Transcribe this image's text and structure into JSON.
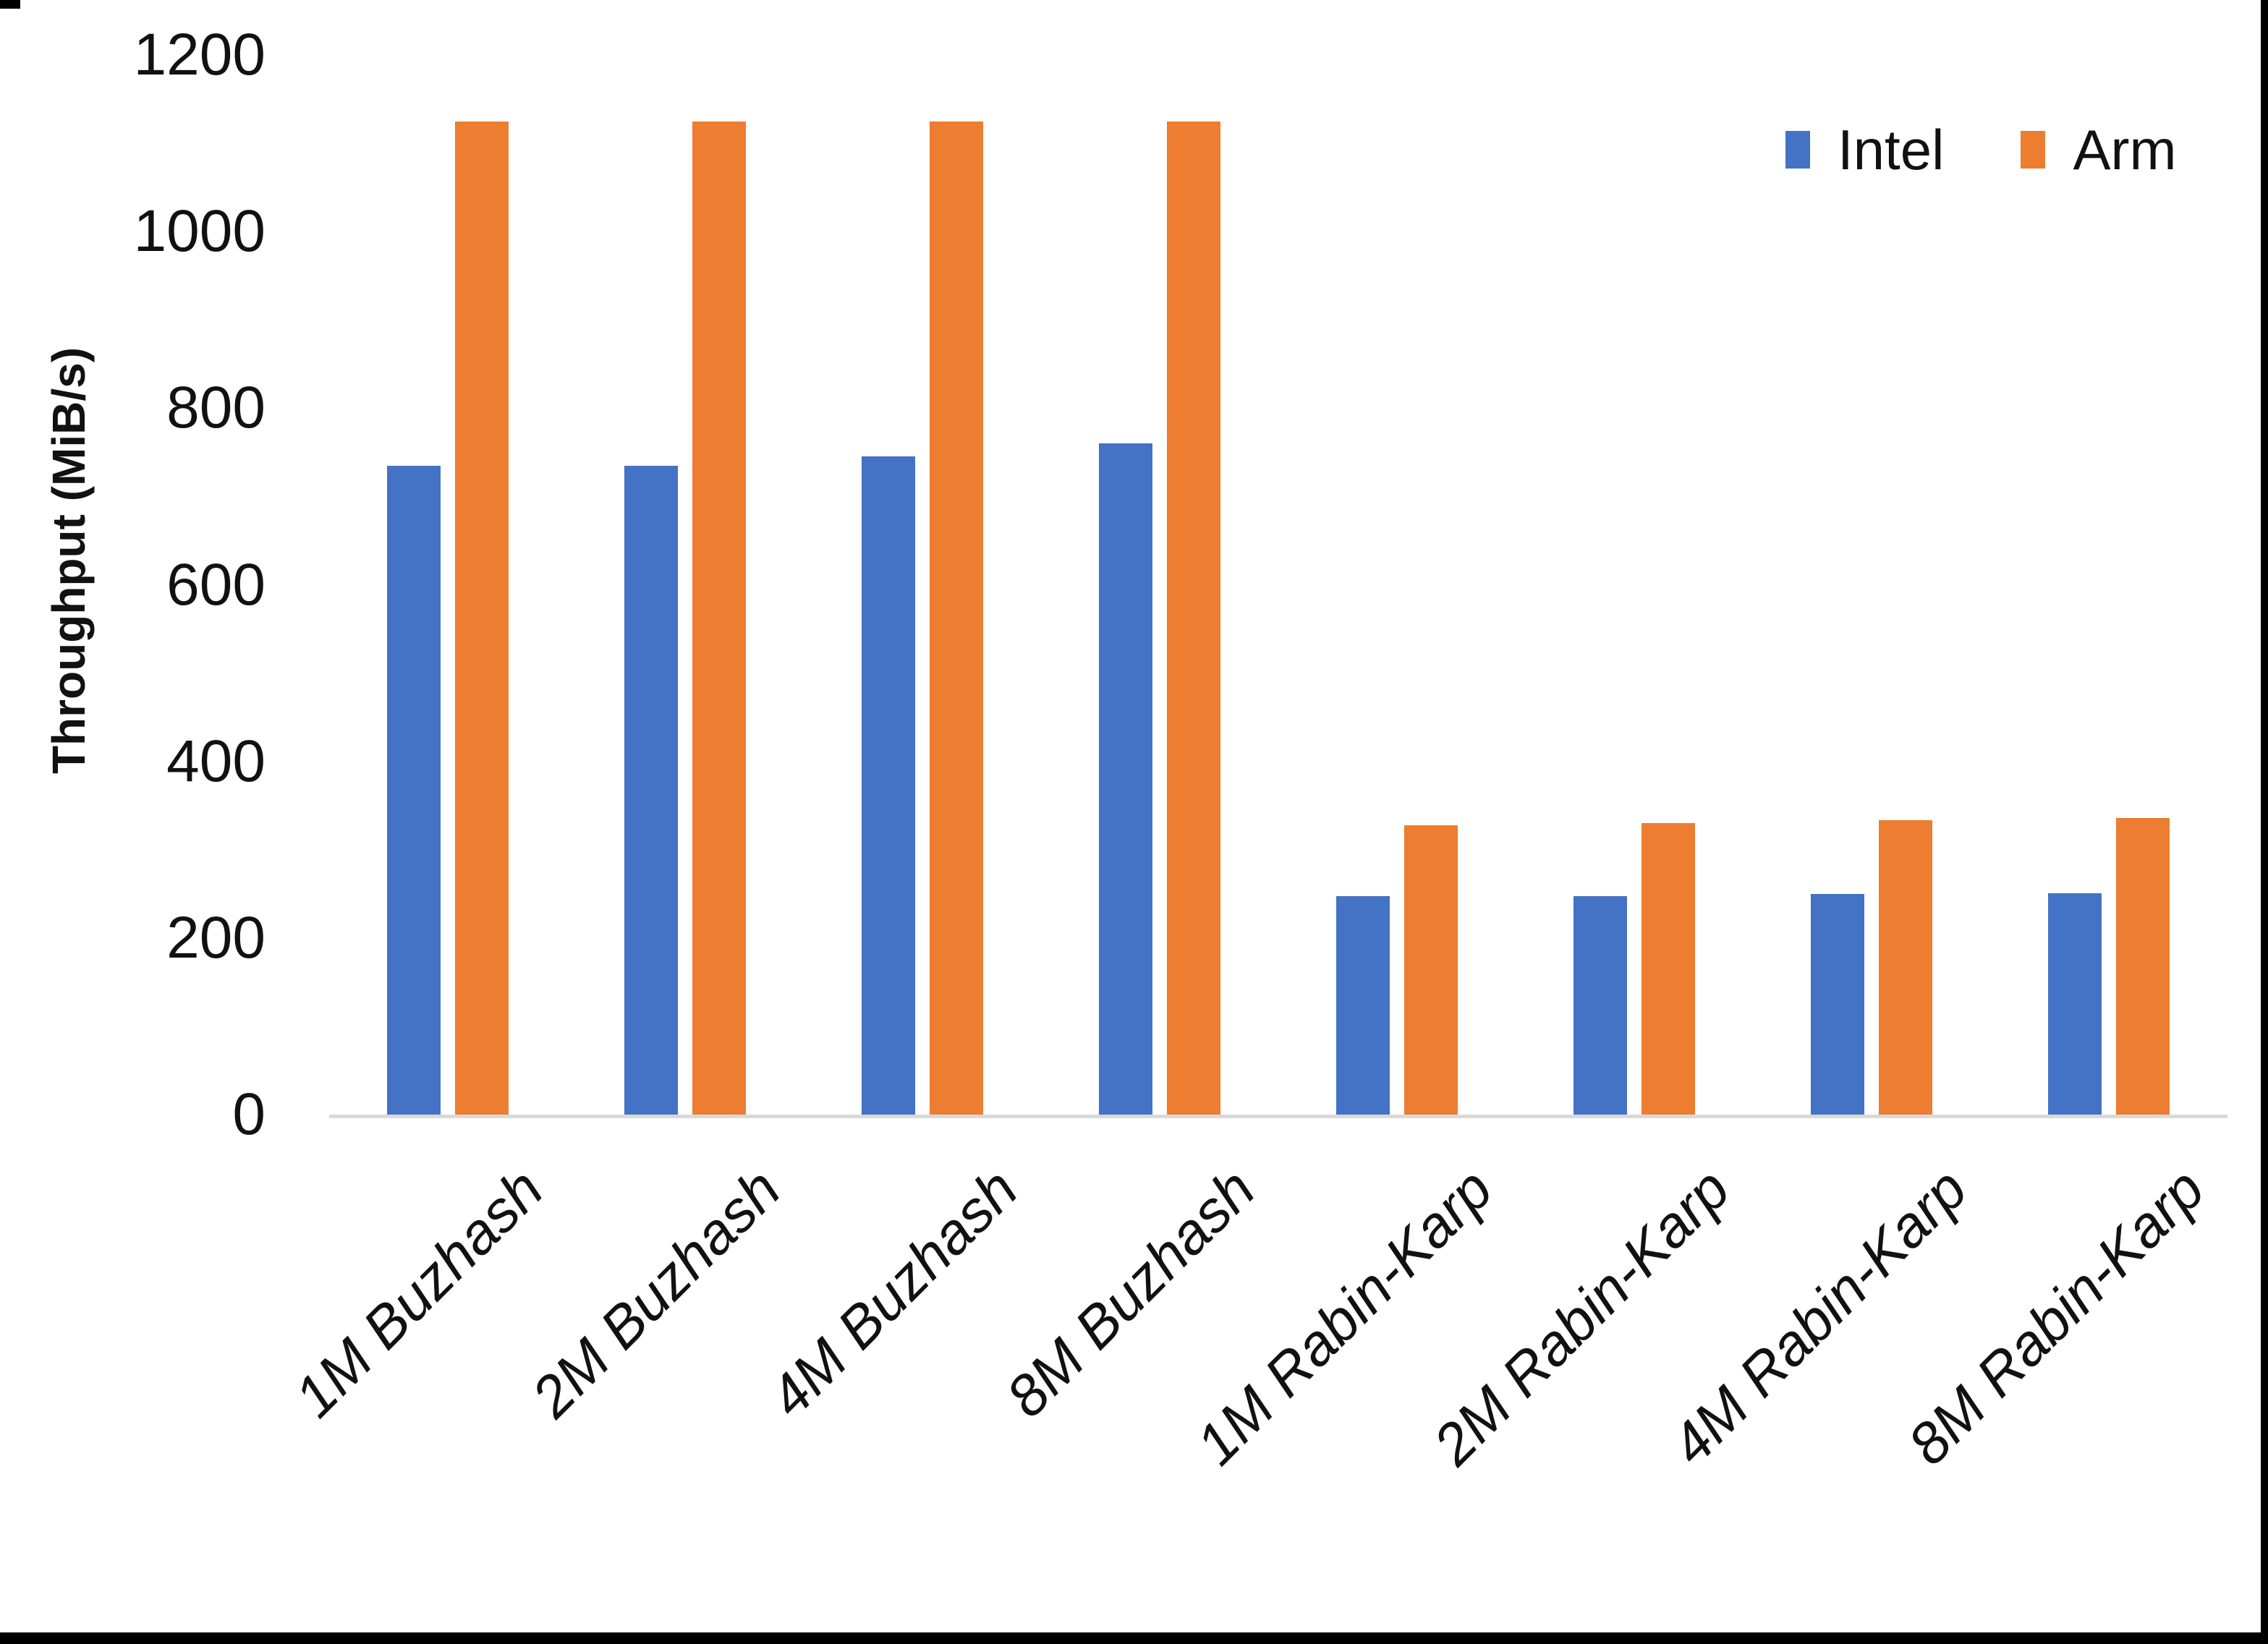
{
  "chart_data": {
    "type": "bar",
    "title": "",
    "xlabel": "",
    "ylabel": "Throughput (MiB/s)",
    "categories": [
      "1M Buzhash",
      "2M Buzhash",
      "4M Buzhash",
      "8M Buzhash",
      "1M Rabin-Karp",
      "2M Rabin-Karp",
      "4M Rabin-Karp",
      "8M Rabin-Karp"
    ],
    "series": [
      {
        "name": "Intel",
        "color": "#4472C4",
        "values": [
          735,
          735,
          745,
          760,
          247,
          247,
          250,
          251
        ]
      },
      {
        "name": "Arm",
        "color": "#ED7D31",
        "values": [
          1125,
          1125,
          1125,
          1125,
          328,
          330,
          333,
          336
        ]
      }
    ],
    "y_ticks": [
      0,
      200,
      400,
      600,
      800,
      1000,
      1200
    ],
    "ylim": [
      0,
      1200
    ],
    "grid": false,
    "legend_position": "top-right",
    "axis_line_color": "#d9d9d9"
  },
  "frame": {
    "border_color": "#000000"
  }
}
